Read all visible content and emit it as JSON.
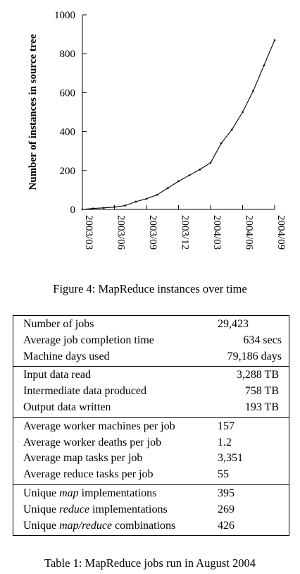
{
  "figure": {
    "caption": "Figure 4: MapReduce instances over time",
    "chart_data": {
      "type": "line",
      "ylabel": "Number of instances in source tree",
      "xlabel": "",
      "ylim": [
        0,
        1000
      ],
      "yticks": [
        0,
        200,
        400,
        600,
        800,
        1000
      ],
      "xlim": [
        "2003/03",
        "2004/09"
      ],
      "xticks": [
        "2003/03",
        "2003/06",
        "2003/09",
        "2003/12",
        "2004/03",
        "2004/06",
        "2004/09"
      ],
      "series": [
        {
          "points": [
            [
              "2003/03",
              0
            ],
            [
              "2003/04",
              5
            ],
            [
              "2003/05",
              8
            ],
            [
              "2003/06",
              12
            ],
            [
              "2003/07",
              20
            ],
            [
              "2003/08",
              40
            ],
            [
              "2003/09",
              55
            ],
            [
              "2003/10",
              75
            ],
            [
              "2003/11",
              110
            ],
            [
              "2003/12",
              145
            ],
            [
              "2004/01",
              175
            ],
            [
              "2004/02",
              205
            ],
            [
              "2004/03",
              240
            ],
            [
              "2004/04",
              340
            ],
            [
              "2004/05",
              410
            ],
            [
              "2004/06",
              500
            ],
            [
              "2004/07",
              610
            ],
            [
              "2004/08",
              740
            ],
            [
              "2004/09",
              870
            ]
          ]
        }
      ]
    }
  },
  "table": {
    "caption": "Table 1: MapReduce jobs run in August 2004",
    "groups": [
      [
        {
          "label": "Number of jobs",
          "value": "29,423",
          "align": "left"
        },
        {
          "label": "Average job completion time",
          "value": "634 secs",
          "align": "right"
        },
        {
          "label": "Machine days used",
          "value": "79,186 days",
          "align": "right"
        }
      ],
      [
        {
          "label": "Input data read",
          "value": "3,288 TB",
          "align": "tb"
        },
        {
          "label": "Intermediate data produced",
          "value": "758 TB",
          "align": "tb"
        },
        {
          "label": "Output data written",
          "value": "193 TB",
          "align": "tb"
        }
      ],
      [
        {
          "label": "Average worker machines per job",
          "value": "157",
          "align": "left"
        },
        {
          "label": "Average worker deaths per job",
          "value": "1.2",
          "align": "left"
        },
        {
          "label": "Average map tasks per job",
          "value": "3,351",
          "align": "left"
        },
        {
          "label": "Average reduce tasks per job",
          "value": "55",
          "align": "left"
        }
      ],
      [
        {
          "label_parts": [
            "Unique ",
            "map",
            " implementations"
          ],
          "value": "395",
          "align": "left"
        },
        {
          "label_parts": [
            "Unique ",
            "reduce",
            " implementations"
          ],
          "value": "269",
          "align": "left"
        },
        {
          "label_parts": [
            "Unique ",
            "map/reduce",
            " combinations"
          ],
          "value": "426",
          "align": "left"
        }
      ]
    ]
  }
}
